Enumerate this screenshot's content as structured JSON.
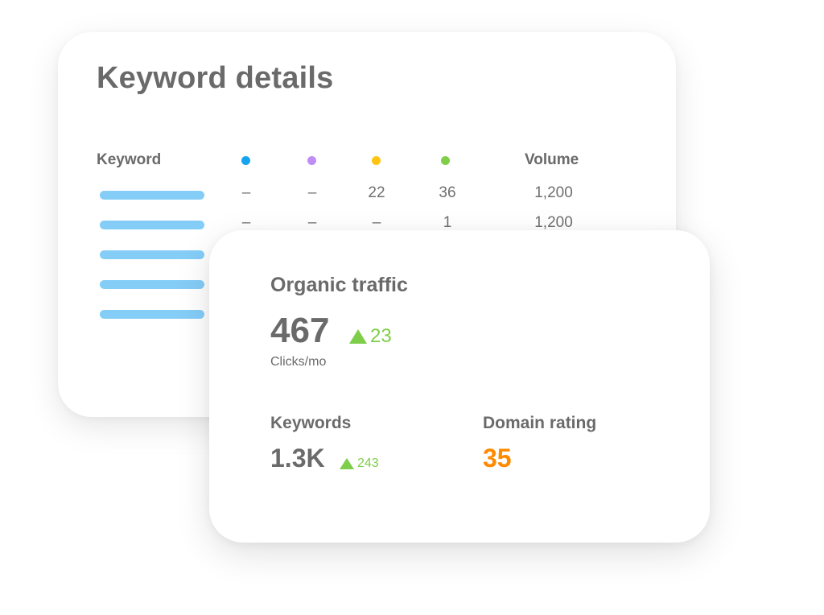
{
  "keyword_details": {
    "title": "Keyword details",
    "columns": {
      "keyword": "Keyword",
      "volume": "Volume",
      "dot_colors": [
        "#16a3f0",
        "#c08cf5",
        "#ffc312",
        "#7fce4a"
      ]
    },
    "rows": [
      {
        "c1": "–",
        "c2": "–",
        "c3": "22",
        "c4": "36",
        "volume": "1,200"
      },
      {
        "c1": "–",
        "c2": "–",
        "c3": "–",
        "c4": "1",
        "volume": "1,200"
      },
      {
        "c1": "",
        "c2": "",
        "c3": "",
        "c4": "",
        "volume": ""
      },
      {
        "c1": "",
        "c2": "",
        "c3": "",
        "c4": "",
        "volume": ""
      },
      {
        "c1": "",
        "c2": "",
        "c3": "",
        "c4": "",
        "volume": ""
      }
    ]
  },
  "organic_traffic": {
    "title": "Organic traffic",
    "value": "467",
    "delta": "23",
    "unit": "Clicks/mo"
  },
  "keywords": {
    "label": "Keywords",
    "value": "1.3K",
    "delta": "243"
  },
  "domain_rating": {
    "label": "Domain rating",
    "value": "35",
    "value_color": "#ff8a00"
  },
  "colors": {
    "keyword_bar": "#84cdf7",
    "positive": "#7fce4a",
    "text": "#6a6a6a"
  }
}
